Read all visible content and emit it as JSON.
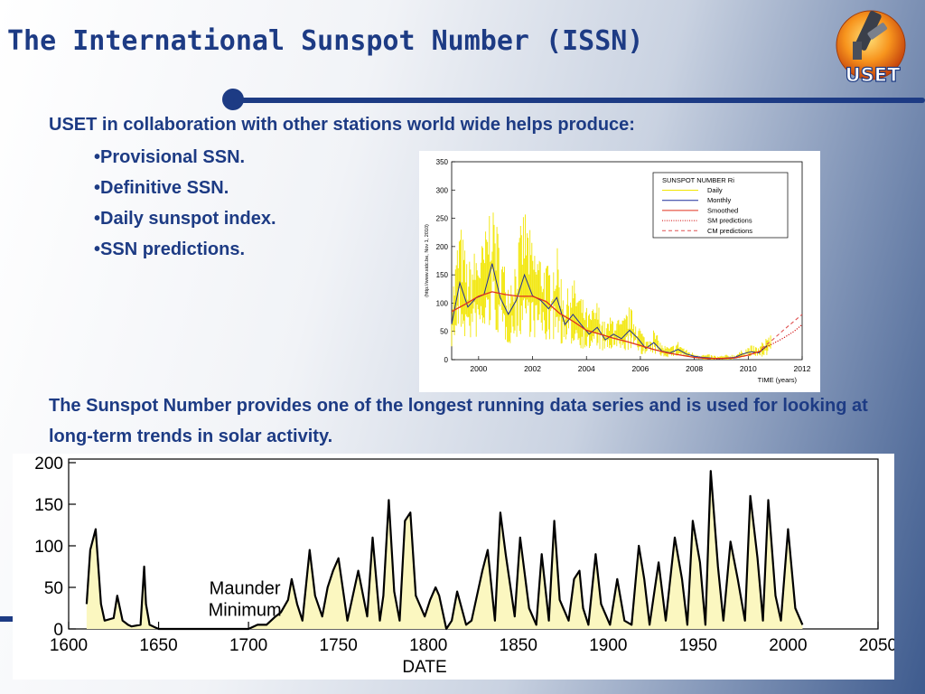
{
  "slide": {
    "title": "The International Sunspot Number (ISSN)",
    "logo_text": "USET",
    "intro": "USET in collaboration with other stations world wide helps produce:",
    "bullets": [
      "Provisional SSN.",
      "Definitive SSN.",
      "Daily sunspot index.",
      "SSN predictions."
    ],
    "description": "The Sunspot Number provides one of the longest running data series and is used for looking at long-term trends in solar activity.",
    "colors": {
      "title": "#1d3b84",
      "accent_line": "#1d3b84"
    }
  },
  "chart_data": [
    {
      "type": "line",
      "xlim": [
        1999,
        2012
      ],
      "ylim": [
        0,
        350
      ],
      "xticks": [
        2000,
        2002,
        2004,
        2006,
        2008,
        2010,
        2012
      ],
      "yticks": [
        0,
        50,
        100,
        150,
        200,
        250,
        300,
        350
      ],
      "xlabel": "TIME (years)",
      "ylabel": "(http://www.sidc.be, Nov  1, 2010)",
      "legend": {
        "title": "SUNSPOT NUMBER Ri",
        "position": "top-right",
        "entries": [
          {
            "name": "Daily",
            "color": "#f2e600",
            "style": "solid"
          },
          {
            "name": "Monthly",
            "color": "#1f2f9a",
            "style": "solid"
          },
          {
            "name": "Smoothed",
            "color": "#e0301e",
            "style": "solid"
          },
          {
            "name": "SM predictions",
            "color": "#d00000",
            "style": "dotted"
          },
          {
            "name": "CM predictions",
            "color": "#e05050",
            "style": "dashed"
          }
        ]
      },
      "series": [
        {
          "name": "Monthly",
          "x": [
            1999.0,
            1999.3,
            1999.6,
            1999.9,
            2000.2,
            2000.5,
            2000.8,
            2001.1,
            2001.4,
            2001.7,
            2002.0,
            2002.3,
            2002.6,
            2002.9,
            2003.2,
            2003.5,
            2003.8,
            2004.1,
            2004.4,
            2004.7,
            2005.0,
            2005.3,
            2005.6,
            2005.9,
            2006.2,
            2006.5,
            2006.8,
            2007.1,
            2007.4,
            2007.7,
            2008.0,
            2008.3,
            2008.6,
            2008.9,
            2009.2,
            2009.5,
            2009.8,
            2010.1,
            2010.4,
            2010.7
          ],
          "y": [
            63,
            136,
            93,
            109,
            115,
            170,
            110,
            80,
            105,
            150,
            113,
            105,
            90,
            110,
            62,
            80,
            62,
            45,
            57,
            35,
            45,
            37,
            52,
            38,
            20,
            30,
            15,
            12,
            18,
            10,
            6,
            4,
            3,
            1,
            3,
            4,
            10,
            14,
            12,
            25
          ]
        },
        {
          "name": "Smoothed",
          "x": [
            1999.0,
            1999.5,
            2000.0,
            2000.5,
            2001.0,
            2001.5,
            2002.0,
            2002.5,
            2003.0,
            2003.5,
            2004.0,
            2004.5,
            2005.0,
            2005.5,
            2006.0,
            2006.5,
            2007.0,
            2007.5,
            2008.0,
            2008.5,
            2009.0,
            2009.5,
            2010.0,
            2010.5
          ],
          "y": [
            85,
            98,
            112,
            120,
            115,
            112,
            112,
            103,
            82,
            68,
            52,
            45,
            38,
            32,
            25,
            18,
            12,
            8,
            4,
            2,
            2,
            3,
            8,
            16
          ]
        },
        {
          "name": "SM predictions",
          "x": [
            2010.5,
            2010.9,
            2011.3,
            2011.7,
            2012.0
          ],
          "y": [
            18,
            28,
            38,
            50,
            62
          ]
        },
        {
          "name": "CM predictions",
          "x": [
            2010.5,
            2010.9,
            2011.3,
            2011.7,
            2012.0
          ],
          "y": [
            20,
            35,
            52,
            68,
            80
          ]
        }
      ]
    },
    {
      "type": "area",
      "xlim": [
        1600,
        2050
      ],
      "ylim": [
        0,
        200
      ],
      "xticks": [
        1600,
        1650,
        1700,
        1750,
        1800,
        1850,
        1900,
        1950,
        2000,
        2050
      ],
      "yticks": [
        0,
        50,
        100,
        150,
        200
      ],
      "xlabel": "DATE",
      "annotation": "Maunder\nMinimum",
      "fill_color": "#fbf7c0",
      "line_color": "#000000",
      "series": [
        {
          "name": "Sunspot Number",
          "x": [
            1610,
            1612,
            1615,
            1618,
            1620,
            1625,
            1627,
            1630,
            1633,
            1635,
            1640,
            1642,
            1643,
            1645,
            1648,
            1650,
            1660,
            1680,
            1700,
            1705,
            1710,
            1715,
            1718,
            1722,
            1724,
            1727,
            1730,
            1734,
            1737,
            1741,
            1744,
            1747,
            1750,
            1755,
            1758,
            1761,
            1766,
            1769,
            1773,
            1775,
            1778,
            1781,
            1784,
            1787,
            1790,
            1793,
            1798,
            1801,
            1804,
            1806,
            1810,
            1813,
            1816,
            1821,
            1824,
            1830,
            1833,
            1837,
            1840,
            1843,
            1848,
            1851,
            1856,
            1860,
            1863,
            1867,
            1870,
            1873,
            1878,
            1881,
            1884,
            1886,
            1889,
            1893,
            1896,
            1901,
            1905,
            1909,
            1913,
            1917,
            1920,
            1923,
            1928,
            1932,
            1937,
            1941,
            1944,
            1947,
            1951,
            1954,
            1957,
            1961,
            1964,
            1968,
            1972,
            1976,
            1979,
            1983,
            1986,
            1989,
            1993,
            1996,
            2000,
            2004,
            2008
          ],
          "y": [
            30,
            95,
            120,
            30,
            10,
            13,
            40,
            10,
            5,
            3,
            5,
            75,
            30,
            5,
            2,
            0,
            0,
            0,
            0,
            5,
            5,
            15,
            20,
            35,
            60,
            30,
            10,
            95,
            40,
            15,
            50,
            70,
            85,
            10,
            40,
            70,
            15,
            110,
            10,
            40,
            155,
            45,
            10,
            130,
            140,
            40,
            15,
            35,
            50,
            40,
            0,
            10,
            45,
            5,
            10,
            70,
            95,
            10,
            140,
            90,
            15,
            110,
            25,
            5,
            90,
            10,
            130,
            35,
            10,
            60,
            70,
            25,
            5,
            90,
            30,
            5,
            60,
            10,
            5,
            100,
            60,
            5,
            80,
            10,
            110,
            60,
            5,
            130,
            80,
            5,
            190,
            75,
            10,
            105,
            60,
            10,
            160,
            85,
            10,
            155,
            40,
            10,
            120,
            25,
            5
          ]
        }
      ]
    }
  ]
}
